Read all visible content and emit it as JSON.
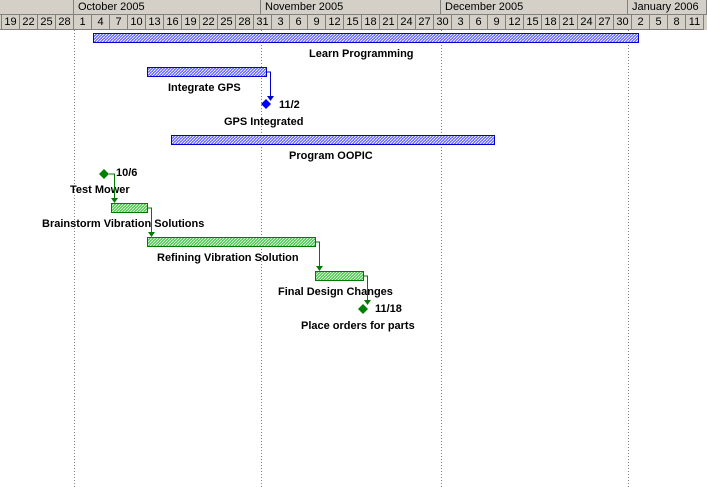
{
  "timescale": {
    "months": [
      "October 2005",
      "November 2005",
      "December 2005",
      "January 2006"
    ],
    "days": [
      "19",
      "22",
      "25",
      "28",
      "1",
      "4",
      "7",
      "10",
      "13",
      "16",
      "19",
      "22",
      "25",
      "28",
      "31",
      "3",
      "6",
      "9",
      "12",
      "15",
      "18",
      "21",
      "24",
      "27",
      "30",
      "3",
      "6",
      "9",
      "12",
      "15",
      "18",
      "21",
      "24",
      "27",
      "30",
      "2",
      "5",
      "8",
      "11"
    ]
  },
  "tasks": [
    {
      "name": "Learn Programming"
    },
    {
      "name": "Integrate GPS"
    },
    {
      "name": "GPS Integrated",
      "milestone_date": "11/2"
    },
    {
      "name": "Program OOPIC"
    },
    {
      "name": "Test Mower",
      "milestone_date": "10/6"
    },
    {
      "name": "Brainstorm Vibration Solutions"
    },
    {
      "name": "Refining Vibration Solution"
    },
    {
      "name": "Final Design Changes"
    },
    {
      "name": "Place orders for parts",
      "milestone_date": "11/18"
    }
  ],
  "colors": {
    "blue_fill": "#6b6bff",
    "blue_border": "#0000cc",
    "green_fill": "#55c655",
    "green_border": "#007a00",
    "milestone_blue": "#0000ff",
    "milestone_green": "#008000",
    "header_bg": "#d4d0c8",
    "gridline": "#808080"
  }
}
